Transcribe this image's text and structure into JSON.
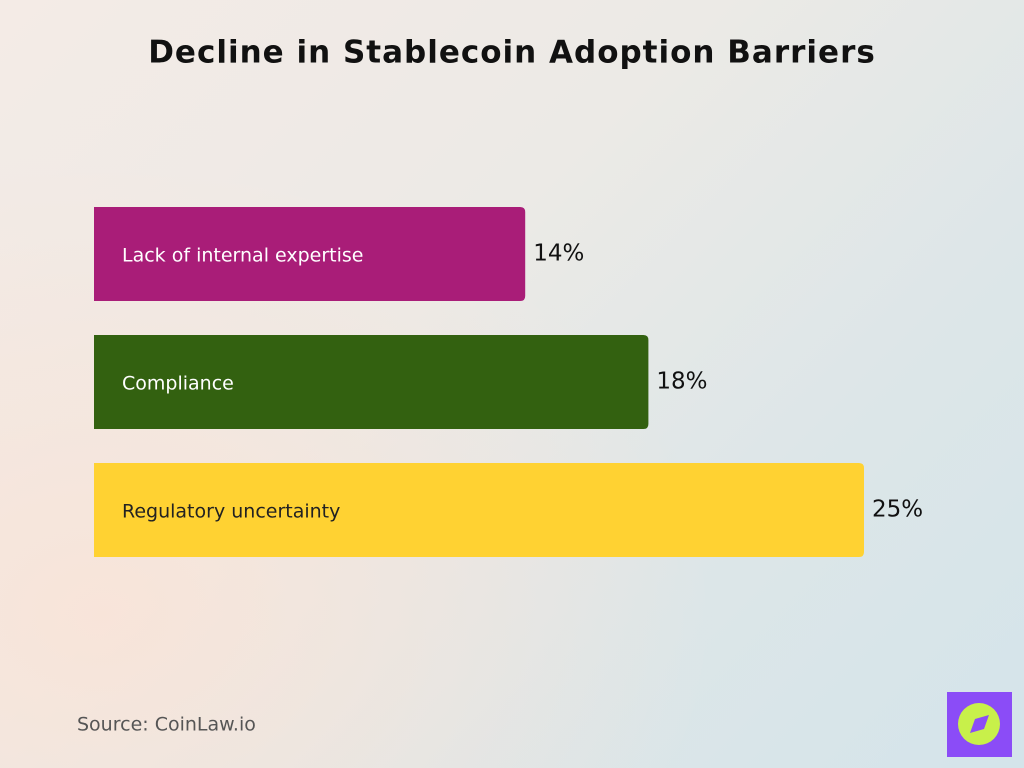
{
  "chart_data": {
    "type": "bar",
    "orientation": "horizontal",
    "title": "Decline in Stablecoin Adoption Barriers",
    "categories": [
      "Lack of internal expertise",
      "Compliance",
      "Regulatory uncertainty"
    ],
    "values": [
      14,
      18,
      25
    ],
    "value_labels": [
      "14%",
      "18%",
      "25%"
    ],
    "colors": [
      "#a91d78",
      "#336110",
      "#ffd232"
    ],
    "source": "Source: CoinLaw.io"
  }
}
